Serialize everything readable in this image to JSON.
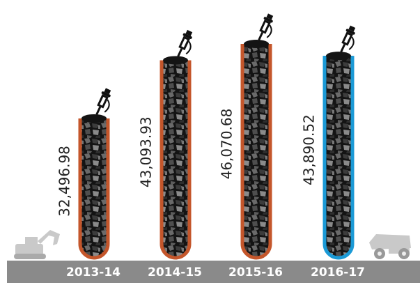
{
  "chart_data": {
    "type": "bar",
    "categories": [
      "2013-14",
      "2014-15",
      "2015-16",
      "2016-17"
    ],
    "values": [
      32496.98,
      43093.93,
      46070.68,
      43890.52
    ],
    "value_labels": [
      "32,496.98",
      "43,093.93",
      "46,070.68",
      "43,890.52"
    ],
    "colors": [
      "#c4562b",
      "#c4562b",
      "#c4562b",
      "#1b9ad6"
    ]
  }
}
